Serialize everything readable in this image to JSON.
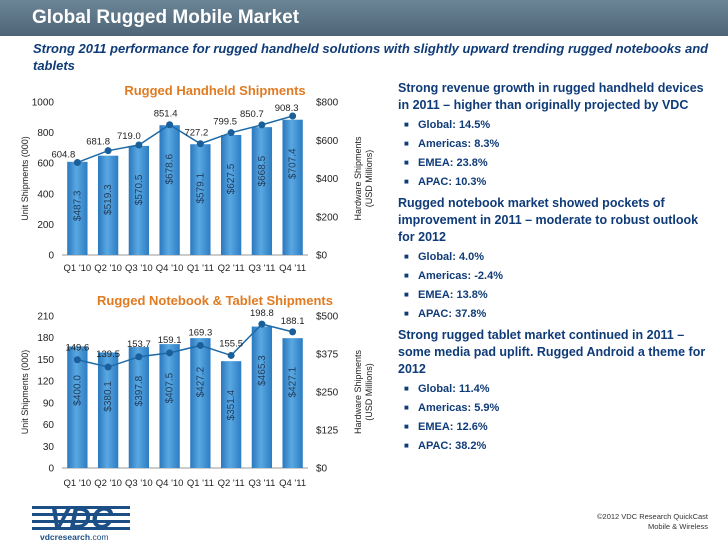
{
  "header": {
    "title": "Global Rugged Mobile Market",
    "subtitle": "Strong 2011 performance for rugged handheld solutions with slightly upward trending rugged notebooks and tablets"
  },
  "colors": {
    "title_bar": "#5a7285",
    "subtitle": "#0f3b78",
    "chart_title": "#e07b22",
    "bar": "#3a8fd0",
    "line": "#1e6aa6",
    "text_blue": "#0f3b78"
  },
  "chart_data": [
    {
      "type": "bar",
      "title": "Rugged Handheld Shipments",
      "categories": [
        "Q1 '10",
        "Q2 '10",
        "Q3 '10",
        "Q4 '10",
        "Q1 '11",
        "Q2 '11",
        "Q3 '11",
        "Q4 '11"
      ],
      "series": [
        {
          "type": "bar",
          "axis": "right",
          "values": [
            487.3,
            519.3,
            570.5,
            678.6,
            579.1,
            627.5,
            668.5,
            707.4
          ],
          "value_labels": [
            "$487.3",
            "$519.3",
            "$570.5",
            "$678.6",
            "$579.1",
            "$627.5",
            "$668.5",
            "$707.4"
          ]
        },
        {
          "type": "line",
          "axis": "left",
          "values": [
            604.8,
            681.8,
            719.0,
            851.4,
            727.2,
            799.5,
            850.7,
            908.3
          ],
          "value_labels": [
            "604.8",
            "681.8",
            "719.0",
            "851.4",
            "727.2",
            "799.5",
            "850.7",
            "908.3"
          ]
        }
      ],
      "ylabel": "Unit Shipments (000)",
      "ylabel_right": "Hardware Shipments (USD Millions)",
      "ylim": [
        0,
        1000
      ],
      "ylim_right": [
        0,
        800
      ],
      "yticks": [
        "0",
        "200",
        "400",
        "600",
        "800",
        "1000"
      ],
      "yticks_right": [
        "$0",
        "$200",
        "$400",
        "$600",
        "$800"
      ]
    },
    {
      "type": "bar",
      "title": "Rugged Notebook & Tablet Shipments",
      "categories": [
        "Q1 '10",
        "Q2 '10",
        "Q3 '10",
        "Q4 '10",
        "Q1 '11",
        "Q2 '11",
        "Q3 '11",
        "Q4 '11"
      ],
      "series": [
        {
          "type": "bar",
          "axis": "right",
          "values": [
            400.0,
            380.1,
            397.8,
            407.5,
            427.2,
            351.4,
            465.3,
            427.1
          ],
          "value_labels": [
            "$400.0",
            "$380.1",
            "$397.8",
            "$407.5",
            "$427.2",
            "$351.4",
            "$465.3",
            "$427.1"
          ]
        },
        {
          "type": "line",
          "axis": "left",
          "values": [
            149.6,
            139.5,
            153.7,
            159.1,
            169.3,
            155.5,
            198.8,
            188.1
          ],
          "value_labels": [
            "149.6",
            "139.5",
            "153.7",
            "159.1",
            "169.3",
            "155.5",
            "198.8",
            "188.1"
          ]
        }
      ],
      "ylabel": "Unit Shipments (000)",
      "ylabel_right": "Hardware Shipments (USD Millions)",
      "ylim": [
        0,
        210
      ],
      "ylim_right": [
        0,
        500
      ],
      "yticks": [
        "0",
        "30",
        "60",
        "90",
        "120",
        "150",
        "180",
        "210"
      ],
      "yticks_right": [
        "$0",
        "$125",
        "$250",
        "$375",
        "$500"
      ]
    }
  ],
  "sections": [
    {
      "heading": "Strong revenue growth in rugged handheld devices in 2011 – higher than originally projected by VDC",
      "bullets": [
        "Global: 14.5%",
        "Americas: 8.3%",
        "EMEA: 23.8%",
        "APAC: 10.3%"
      ]
    },
    {
      "heading": "Rugged notebook market showed pockets of improvement in 2011 – moderate to robust outlook for 2012",
      "bullets": [
        "Global: 4.0%",
        "Americas: -2.4%",
        "EMEA: 13.8%",
        "APAC: 37.8%"
      ]
    },
    {
      "heading": "Strong rugged tablet market continued in 2011 – some media pad uplift. Rugged Android a theme for 2012",
      "bullets": [
        "Global: 11.4%",
        "Americas: 5.9%",
        "EMEA: 12.6%",
        "APAC: 38.2%"
      ]
    }
  ],
  "footer": {
    "logo_text": "VDC",
    "url_prefix": "vdcresearch",
    "url_suffix": ".com",
    "copyright": "©2012 VDC Research QuickCast",
    "category": "Mobile & Wireless"
  }
}
